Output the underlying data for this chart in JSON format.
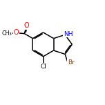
{
  "background_color": "#ffffff",
  "figsize": [
    1.52,
    1.52
  ],
  "dpi": 100,
  "bond_color": "#000000",
  "bond_width": 1.1,
  "xlim": [
    0,
    10
  ],
  "ylim": [
    0,
    10
  ],
  "atoms": {
    "NH_text": "NH",
    "NH_color": "#0000cc",
    "Cl_text": "Cl",
    "Cl_color": "#000000",
    "Br_text": "Br",
    "Br_color": "#8b4513",
    "O_color": "#ff0000",
    "CH3_color": "#000000"
  }
}
